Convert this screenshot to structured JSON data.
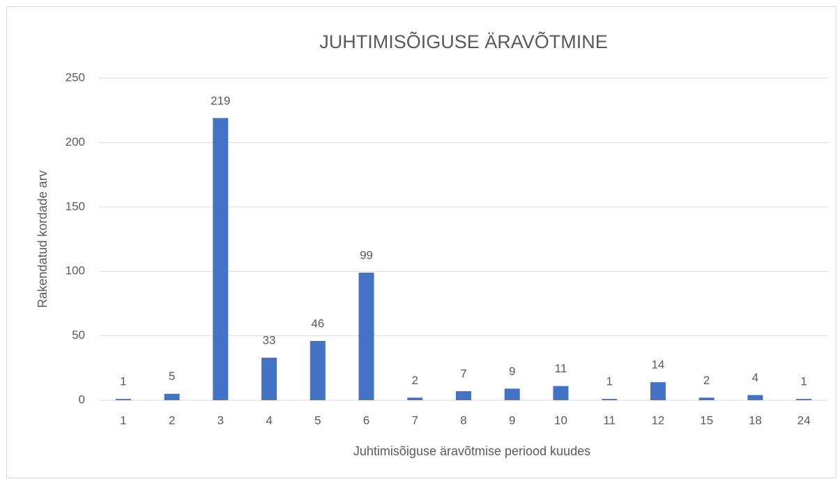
{
  "chart_data": {
    "type": "bar",
    "title": "JUHTIMISÕIGUSE ÄRAVÕTMINE",
    "x_label": "Juhtimisõiguse äravõtmise periood kuudes",
    "y_label": "Rakendatud kordade arv",
    "categories": [
      "1",
      "2",
      "3",
      "4",
      "5",
      "6",
      "7",
      "8",
      "9",
      "10",
      "11",
      "12",
      "15",
      "18",
      "24"
    ],
    "values": [
      1,
      5,
      219,
      33,
      46,
      99,
      2,
      7,
      9,
      11,
      1,
      14,
      2,
      4,
      1
    ],
    "color": "#4472c4",
    "ylim": [
      0,
      250
    ],
    "yticks": [
      0,
      50,
      100,
      150,
      200,
      250
    ],
    "grid": true
  }
}
